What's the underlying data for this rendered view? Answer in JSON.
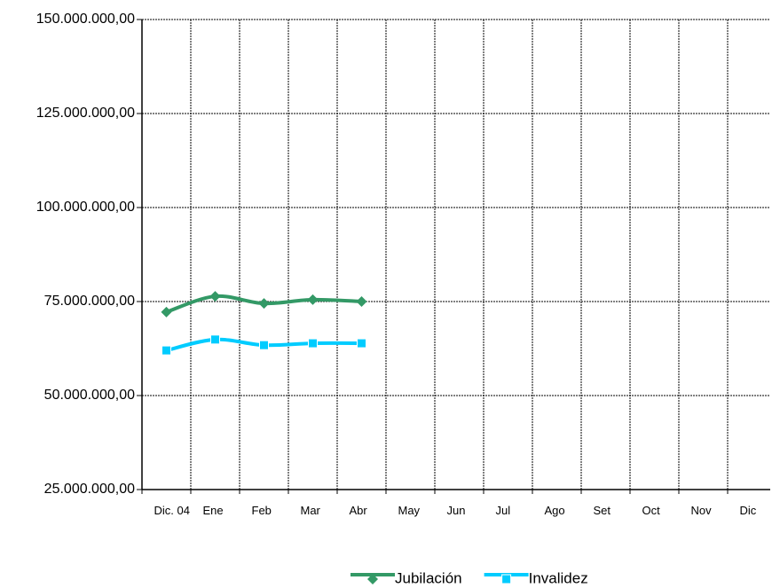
{
  "chart_data": {
    "type": "line",
    "categories": [
      "Dic. 04",
      "Ene",
      "Feb",
      "Mar",
      "Abr",
      "May",
      "Jun",
      "Jul",
      "Ago",
      "Set",
      "Oct",
      "Nov",
      "Dic"
    ],
    "series": [
      {
        "name": "Jubilación",
        "color": "#339966",
        "marker": "diamond",
        "values": [
          72200000,
          76400000,
          74500000,
          75500000,
          75000000,
          null,
          null,
          null,
          null,
          null,
          null,
          null,
          null
        ]
      },
      {
        "name": "Invalidez",
        "color": "#00ccff",
        "marker": "square",
        "values": [
          62000000,
          64900000,
          63400000,
          63900000,
          63900000,
          null,
          null,
          null,
          null,
          null,
          null,
          null,
          null
        ]
      }
    ],
    "ylim": [
      25000000,
      150000000
    ],
    "yticks": [
      {
        "value": 25000000,
        "label": "25.000.000,00"
      },
      {
        "value": 50000000,
        "label": "50.000.000,00"
      },
      {
        "value": 75000000,
        "label": "75.000.000,00"
      },
      {
        "value": 100000000,
        "label": "100.000.000,00"
      },
      {
        "value": 125000000,
        "label": "125.000.000,00"
      },
      {
        "value": 150000000,
        "label": "150.000.000,00"
      }
    ],
    "grid": true,
    "smooth": true,
    "legend": "bottom"
  }
}
